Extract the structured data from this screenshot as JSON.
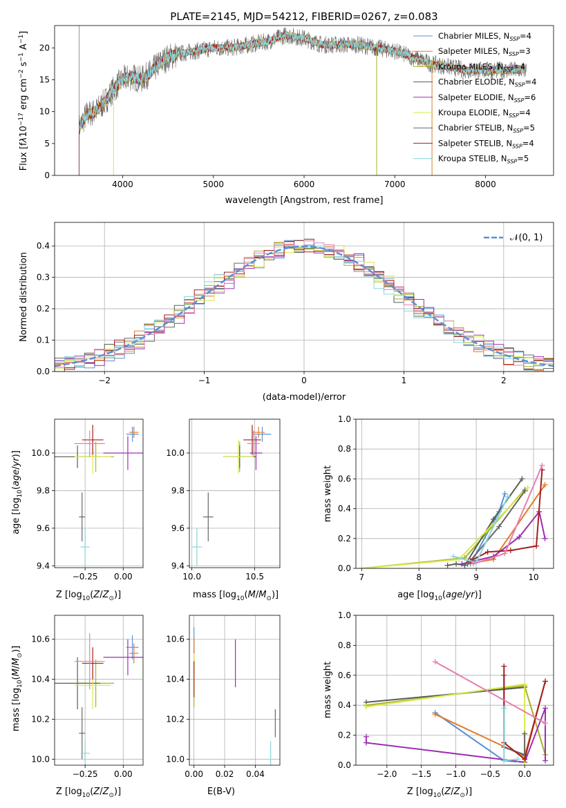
{
  "colors": {
    "chabrier_miles": "#5b8fd6",
    "salpeter_miles": "#e07b27",
    "kroupa_miles": "#a8b02a",
    "chabrier_elodie": "#555e55",
    "salpeter_elodie": "#9a2fae",
    "kroupa_elodie": "#d8e84a",
    "chabrier_stelib": "#666666",
    "salpeter_stelib": "#a51c1c",
    "kroupa_stelib": "#86d6dc",
    "pink": "#e67fb0",
    "gauss": "#5b8fd6"
  },
  "chart_data": [
    {
      "type": "line",
      "title": "PLATE=2145, MJD=54212, FIBERID=0267, z=0.083",
      "xlabel": "wavelength [Angstrom, rest frame]",
      "ylabel": "Flux [f_λ10^-17 erg cm^-2 s^-1 A^-1]",
      "xlim": [
        3250,
        8750
      ],
      "ylim": [
        0,
        23.5
      ],
      "xticks": [
        "4000",
        "5000",
        "6000",
        "7000",
        "8000"
      ],
      "yticks": [
        "0",
        "5",
        "10",
        "15",
        "20"
      ],
      "legend": "upper right",
      "series": [
        {
          "name": "Chabrier MILES, N_SSP=4",
          "color": "chabrier_miles"
        },
        {
          "name": "Salpeter MILES, N_SSP=3",
          "color": "salpeter_miles"
        },
        {
          "name": "Kroupa MILES, N_SSP=4",
          "color": "kroupa_miles"
        },
        {
          "name": "Chabrier ELODIE, N_SSP=4",
          "color": "chabrier_elodie"
        },
        {
          "name": "Salpeter ELODIE, N_SSP=6",
          "color": "salpeter_elodie"
        },
        {
          "name": "Kroupa ELODIE, N_SSP=4",
          "color": "kroupa_elodie"
        },
        {
          "name": "Chabrier STELIB, N_SSP=5",
          "color": "chabrier_stelib"
        },
        {
          "name": "Salpeter STELIB, N_SSP=4",
          "color": "salpeter_stelib"
        },
        {
          "name": "Kroupa STELIB, N_SSP=5",
          "color": "kroupa_stelib"
        }
      ],
      "continuum": {
        "x": [
          3520,
          3600,
          3700,
          3800,
          3900,
          4000,
          4100,
          4200,
          4300,
          4400,
          4500,
          4600,
          4800,
          5000,
          5200,
          5400,
          5600,
          5800,
          6000,
          6200,
          6400,
          6600,
          6800,
          7000,
          7200,
          7400,
          7600,
          7800,
          8000,
          8200,
          8400
        ],
        "y": [
          7.5,
          9.5,
          10.0,
          11.5,
          13.5,
          15.0,
          15.5,
          15.0,
          16.0,
          17.5,
          18.5,
          19.0,
          19.5,
          20.0,
          20.0,
          20.5,
          21.0,
          22.0,
          21.5,
          20.5,
          20.5,
          20.5,
          20.0,
          19.5,
          18.5,
          17.5,
          17.0,
          16.5,
          16.5,
          16.5,
          16.5
        ]
      }
    },
    {
      "type": "line",
      "xlabel": "(data-model)/error",
      "ylabel": "Normed distribution",
      "xlim": [
        -2.5,
        2.5
      ],
      "ylim": [
        0,
        0.475
      ],
      "xticks": [
        "−2",
        "−1",
        "0",
        "1",
        "2"
      ],
      "yticks": [
        "0.0",
        "0.1",
        "0.2",
        "0.3",
        "0.4"
      ],
      "legend": "upper right",
      "legend_label": "𝒩(0, 1)",
      "gaussian": {
        "mean": 0,
        "sigma": 1
      }
    },
    {
      "type": "scatter",
      "xlabel": "Z [log10(Z/Z⊙)]",
      "ylabel": "age  [log10(age/yr)]",
      "xlim": [
        -0.45,
        0.13
      ],
      "ylim": [
        9.39,
        10.18
      ],
      "xticks": [
        "−0.25",
        "0.00"
      ],
      "xtick_values": [
        -0.25,
        0.0
      ],
      "yticks": [
        "9.4",
        "9.6",
        "9.8",
        "10.0"
      ],
      "ytick_values": [
        9.4,
        9.6,
        9.8,
        10.0
      ],
      "points": [
        {
          "x": 0.06,
          "y": 10.1,
          "xerr": 0.04,
          "yerr": 0.04,
          "color": "chabrier_miles"
        },
        {
          "x": 0.07,
          "y": 10.11,
          "xerr": 0.03,
          "yerr": 0.03,
          "color": "salpeter_miles"
        },
        {
          "x": -0.18,
          "y": 9.98,
          "xerr": 0.12,
          "yerr": 0.08,
          "color": "kroupa_miles"
        },
        {
          "x": -0.3,
          "y": 9.98,
          "xerr": 0.15,
          "yerr": 0.06,
          "color": "chabrier_elodie"
        },
        {
          "x": 0.03,
          "y": 10.0,
          "xerr": 0.16,
          "yerr": 0.09,
          "color": "salpeter_elodie"
        },
        {
          "x": -0.2,
          "y": 9.98,
          "xerr": 0.12,
          "yerr": 0.09,
          "color": "kroupa_elodie"
        },
        {
          "x": -0.27,
          "y": 9.66,
          "xerr": 0.02,
          "yerr": 0.13,
          "color": "chabrier_stelib"
        },
        {
          "x": -0.2,
          "y": 10.07,
          "xerr": 0.07,
          "yerr": 0.08,
          "color": "salpeter_stelib"
        },
        {
          "x": -0.25,
          "y": 9.5,
          "xerr": 0.03,
          "yerr": 0.1,
          "color": "kroupa_stelib"
        },
        {
          "x": -0.22,
          "y": 10.05,
          "xerr": 0.1,
          "yerr": 0.07,
          "color": "pink"
        }
      ]
    },
    {
      "type": "scatter",
      "xlabel": "mass [log10(M/M⊙)]",
      "xlim": [
        9.98,
        10.7
      ],
      "ylim": [
        9.39,
        10.18
      ],
      "xticks": [
        "10.0",
        "10.5"
      ],
      "xtick_values": [
        10.0,
        10.5
      ],
      "yticks": [
        "9.4",
        "9.6",
        "9.8",
        "10.0"
      ],
      "ytick_values": [
        9.4,
        9.6,
        9.8,
        10.0
      ],
      "points": [
        {
          "x": 10.56,
          "y": 10.1,
          "xerr": 0.07,
          "yerr": 0.04,
          "color": "chabrier_miles"
        },
        {
          "x": 10.53,
          "y": 10.11,
          "xerr": 0.05,
          "yerr": 0.03,
          "color": "salpeter_miles"
        },
        {
          "x": 10.38,
          "y": 9.98,
          "xerr": 0.12,
          "yerr": 0.08,
          "color": "kroupa_miles"
        },
        {
          "x": 10.38,
          "y": 9.98,
          "xerr": 0.13,
          "yerr": 0.06,
          "color": "chabrier_elodie"
        },
        {
          "x": 10.51,
          "y": 10.0,
          "xerr": 0.05,
          "yerr": 0.09,
          "color": "salpeter_elodie"
        },
        {
          "x": 10.37,
          "y": 9.98,
          "xerr": 0.12,
          "yerr": 0.09,
          "color": "kroupa_elodie"
        },
        {
          "x": 10.13,
          "y": 9.66,
          "xerr": 0.04,
          "yerr": 0.13,
          "color": "chabrier_stelib"
        },
        {
          "x": 10.48,
          "y": 10.07,
          "xerr": 0.07,
          "yerr": 0.08,
          "color": "salpeter_stelib"
        },
        {
          "x": 10.04,
          "y": 9.5,
          "xerr": 0.04,
          "yerr": 0.1,
          "color": "kroupa_stelib"
        },
        {
          "x": 10.49,
          "y": 10.05,
          "xerr": 0.05,
          "yerr": 0.07,
          "color": "pink"
        }
      ]
    },
    {
      "type": "line",
      "xlabel": "age  [log10(age/yr)]",
      "ylabel": "mass weight",
      "xlim": [
        6.9,
        10.35
      ],
      "ylim": [
        0,
        1
      ],
      "xticks": [
        "7",
        "8",
        "9",
        "10"
      ],
      "xtick_values": [
        7,
        8,
        9,
        10
      ],
      "yticks": [
        "0.0",
        "0.2",
        "0.4",
        "0.6",
        "0.8",
        "1.0"
      ],
      "ytick_values": [
        0,
        0.2,
        0.4,
        0.6,
        0.8,
        1.0
      ],
      "series": [
        {
          "color": "chabrier_miles",
          "x": [
            8.9,
            9.4,
            9.5
          ],
          "y": [
            0.03,
            0.38,
            0.5
          ]
        },
        {
          "color": "salpeter_miles",
          "x": [
            8.85,
            9.3,
            10.2
          ],
          "y": [
            0.03,
            0.06,
            0.56
          ]
        },
        {
          "color": "kroupa_miles",
          "x": [
            7.0,
            8.8,
            9.85
          ],
          "y": [
            0.0,
            0.07,
            0.53
          ]
        },
        {
          "color": "chabrier_elodie",
          "x": [
            8.5,
            8.65,
            8.8,
            9.3,
            9.8
          ],
          "y": [
            0.02,
            0.03,
            0.02,
            0.33,
            0.6
          ]
        },
        {
          "color": "salpeter_elodie",
          "x": [
            8.75,
            9.3,
            9.75,
            10.1,
            10.2
          ],
          "y": [
            0.03,
            0.08,
            0.21,
            0.38,
            0.2
          ]
        },
        {
          "color": "kroupa_elodie",
          "x": [
            7.0,
            8.7,
            9.9
          ],
          "y": [
            0.0,
            0.06,
            0.54
          ]
        },
        {
          "color": "chabrier_stelib",
          "x": [
            8.85,
            9.4,
            9.85
          ],
          "y": [
            0.03,
            0.28,
            0.52
          ]
        },
        {
          "color": "salpeter_stelib",
          "x": [
            8.9,
            9.2,
            9.6,
            10.05,
            10.15
          ],
          "y": [
            0.05,
            0.11,
            0.12,
            0.15,
            0.66
          ]
        },
        {
          "color": "kroupa_stelib",
          "x": [
            8.6,
            9.0,
            9.55
          ],
          "y": [
            0.08,
            0.04,
            0.48
          ]
        },
        {
          "color": "pink",
          "x": [
            8.95,
            9.5,
            10.15
          ],
          "y": [
            0.03,
            0.1,
            0.69
          ]
        }
      ]
    },
    {
      "type": "scatter",
      "xlabel": "Z [log10(Z/Z⊙)]",
      "ylabel": "mass [log10(M/M⊙)]",
      "xlim": [
        -0.45,
        0.13
      ],
      "ylim": [
        9.97,
        10.72
      ],
      "xticks": [
        "−0.25",
        "0.00"
      ],
      "xtick_values": [
        -0.25,
        0.0
      ],
      "yticks": [
        "10.0",
        "10.2",
        "10.4",
        "10.6"
      ],
      "ytick_values": [
        10.0,
        10.2,
        10.4,
        10.6
      ],
      "points": [
        {
          "x": 0.06,
          "y": 10.56,
          "xerr": 0.04,
          "yerr": 0.06,
          "color": "chabrier_miles"
        },
        {
          "x": 0.07,
          "y": 10.53,
          "xerr": 0.03,
          "yerr": 0.05,
          "color": "salpeter_miles"
        },
        {
          "x": -0.18,
          "y": 10.38,
          "xerr": 0.12,
          "yerr": 0.12,
          "color": "kroupa_miles"
        },
        {
          "x": -0.3,
          "y": 10.38,
          "xerr": 0.15,
          "yerr": 0.13,
          "color": "chabrier_elodie"
        },
        {
          "x": 0.03,
          "y": 10.51,
          "xerr": 0.16,
          "yerr": 0.09,
          "color": "salpeter_elodie"
        },
        {
          "x": -0.2,
          "y": 10.37,
          "xerr": 0.12,
          "yerr": 0.12,
          "color": "kroupa_elodie"
        },
        {
          "x": -0.27,
          "y": 10.13,
          "xerr": 0.02,
          "yerr": 0.13,
          "color": "chabrier_stelib"
        },
        {
          "x": -0.2,
          "y": 10.48,
          "xerr": 0.07,
          "yerr": 0.08,
          "color": "salpeter_stelib"
        },
        {
          "x": -0.25,
          "y": 10.03,
          "xerr": 0.03,
          "yerr": 0.06,
          "color": "kroupa_stelib"
        },
        {
          "x": -0.22,
          "y": 10.49,
          "xerr": 0.1,
          "yerr": 0.14,
          "color": "pink"
        }
      ]
    },
    {
      "type": "scatter",
      "xlabel": "E(B-V)",
      "xlim": [
        -0.003,
        0.056
      ],
      "ylim": [
        9.97,
        10.72
      ],
      "xticks": [
        "0.00",
        "0.02",
        "0.04"
      ],
      "xtick_values": [
        0.0,
        0.02,
        0.04
      ],
      "yticks": [
        "10.0",
        "10.2",
        "10.4",
        "10.6"
      ],
      "ytick_values": [
        10.0,
        10.2,
        10.4,
        10.6
      ],
      "points": [
        {
          "x": 0.0,
          "y": 10.56,
          "xerr": 0.0,
          "yerr": 0.1,
          "color": "chabrier_miles"
        },
        {
          "x": 0.0,
          "y": 10.53,
          "xerr": 0.0,
          "yerr": 0.08,
          "color": "salpeter_miles"
        },
        {
          "x": 0.0,
          "y": 10.38,
          "xerr": 0.0,
          "yerr": 0.12,
          "color": "kroupa_miles"
        },
        {
          "x": 0.0,
          "y": 10.43,
          "xerr": 0.0,
          "yerr": 0.1,
          "color": "kroupa_elodie"
        },
        {
          "x": 0.027,
          "y": 10.48,
          "xerr": 0.0,
          "yerr": 0.12,
          "color": "salpeter_elodie"
        },
        {
          "x": 0.053,
          "y": 10.18,
          "xerr": 0.0,
          "yerr": 0.07,
          "color": "chabrier_stelib"
        },
        {
          "x": 0.0,
          "y": 10.4,
          "xerr": 0.0,
          "yerr": 0.09,
          "color": "salpeter_stelib"
        },
        {
          "x": 0.05,
          "y": 10.03,
          "xerr": 0.0,
          "yerr": 0.06,
          "color": "kroupa_stelib"
        }
      ]
    },
    {
      "type": "line",
      "xlabel": "Z [log10(Z/Z⊙)]",
      "ylabel": "mass weight",
      "xlim": [
        -2.45,
        0.42
      ],
      "ylim": [
        0,
        1
      ],
      "xticks": [
        "−2.0",
        "−1.5",
        "−1.0",
        "−0.5",
        "0.0"
      ],
      "xtick_values": [
        -2.0,
        -1.5,
        -1.0,
        -0.5,
        0.0
      ],
      "yticks": [
        "0.0",
        "0.2",
        "0.4",
        "0.6",
        "0.8",
        "1.0"
      ],
      "ytick_values": [
        0,
        0.2,
        0.4,
        0.6,
        0.8,
        1.0
      ],
      "series": [
        {
          "color": "chabrier_miles",
          "x": [
            -1.3,
            -0.3,
            0.0
          ],
          "y": [
            0.35,
            0.03,
            0.02
          ]
        },
        {
          "color": "salpeter_miles",
          "x": [
            -1.3,
            0.0,
            0.3
          ],
          "y": [
            0.34,
            0.06,
            0.56
          ]
        },
        {
          "color": "kroupa_miles",
          "x": [
            -2.3,
            0.0,
            0.3
          ],
          "y": [
            0.4,
            0.53,
            0.07
          ]
        },
        {
          "color": "chabrier_elodie",
          "x": [
            -2.3,
            0.0
          ],
          "y": [
            0.42,
            0.52
          ]
        },
        {
          "color": "salpeter_elodie",
          "x": [
            -2.3,
            -2.3,
            0.0,
            0.3,
            0.3
          ],
          "y": [
            0.19,
            0.15,
            0.02,
            0.38,
            0.03
          ]
        },
        {
          "color": "kroupa_elodie",
          "x": [
            -2.3,
            0.0,
            0.0
          ],
          "y": [
            0.39,
            0.54,
            0.0
          ]
        },
        {
          "color": "chabrier_stelib",
          "x": [
            -0.3,
            -0.3,
            0.0,
            0.0
          ],
          "y": [
            0.6,
            0.12,
            0.07,
            0.21
          ]
        },
        {
          "color": "salpeter_stelib",
          "x": [
            -0.3,
            -0.3,
            0.0,
            0.3
          ],
          "y": [
            0.66,
            0.15,
            0.04,
            0.56
          ]
        },
        {
          "color": "kroupa_stelib",
          "x": [
            -0.3,
            -0.3,
            -0.1
          ],
          "y": [
            0.38,
            0.03,
            0.04
          ]
        },
        {
          "color": "pink",
          "x": [
            -1.3,
            0.3
          ],
          "y": [
            0.69,
            0.28
          ]
        }
      ]
    }
  ]
}
